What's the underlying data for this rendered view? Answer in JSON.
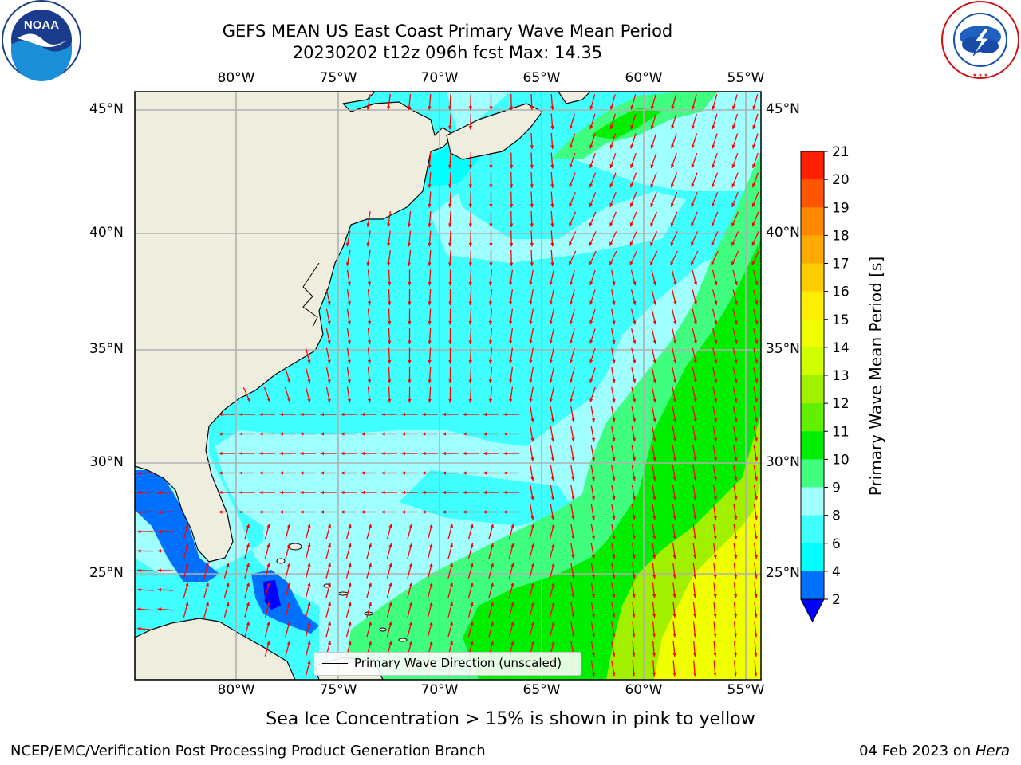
{
  "title": {
    "line1": "GEFS MEAN US East Coast Primary Wave Mean Period",
    "line2": "20230202 t12z 096h fcst   Max: 14.35"
  },
  "map": {
    "x_ticks": [
      "80°W",
      "75°W",
      "70°W",
      "65°W",
      "60°W",
      "55°W"
    ],
    "y_ticks": [
      "45°N",
      "40°N",
      "35°N",
      "30°N",
      "25°N"
    ],
    "legend_label": "Primary Wave Direction (unscaled)",
    "arrow_color": "#ff0000",
    "land_color": "#efedde",
    "grid_color": "#b0b0b0"
  },
  "colorbar": {
    "title": "Primary Wave Mean Period [s]",
    "ticks": [
      "2",
      "4",
      "6",
      "8",
      "9",
      "10",
      "11",
      "12",
      "13",
      "14",
      "15",
      "16",
      "17",
      "18",
      "19",
      "20",
      "21"
    ],
    "colors": [
      "#0070ff",
      "#00ffff",
      "#40ffff",
      "#a0ffff",
      "#40ff80",
      "#00ee00",
      "#60f000",
      "#a0f000",
      "#d0ff00",
      "#f0ff00",
      "#ffee00",
      "#ffcc00",
      "#ffaa00",
      "#ff8800",
      "#ff5500",
      "#ff2000"
    ],
    "under_color": "#0000ff"
  },
  "seaice_note": "Sea Ice Concentration > 15% is shown in pink to yellow",
  "footer": {
    "left": "NCEP/EMC/Verification Post Processing Product Generation Branch",
    "right_date": "04 Feb 2023 on ",
    "right_machine": "Hera"
  },
  "logos": {
    "noaa": "NOAA",
    "nws": "NATIONAL WEATHER SERVICE"
  }
}
